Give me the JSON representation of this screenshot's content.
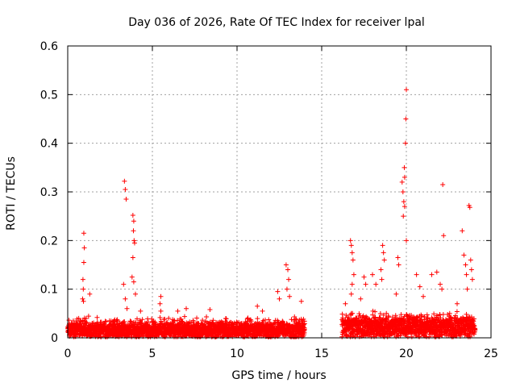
{
  "chart_data": {
    "type": "scatter",
    "title": "Day 036 of 2026, Rate Of TEC Index for receiver lpal",
    "xlabel": "GPS time / hours",
    "ylabel": "ROTI / TECUs",
    "xlim": [
      0,
      25
    ],
    "ylim": [
      0,
      0.6
    ],
    "xticks": [
      0,
      5,
      10,
      15,
      20,
      25
    ],
    "yticks": [
      0,
      0.1,
      0.2,
      0.3,
      0.4,
      0.5,
      0.6
    ],
    "xtick_labels": [
      "0",
      "5",
      "10",
      "15",
      "20",
      "25"
    ],
    "ytick_labels": [
      "0",
      "0.1",
      "0.2",
      "0.3",
      "0.4",
      "0.5",
      "0.6"
    ],
    "grid": true,
    "marker": "+",
    "marker_color": "#ff0000",
    "data_gap_hours": [
      14.0,
      16.2
    ],
    "series": [
      {
        "name": "ROTI",
        "points": [
          [
            0.95,
            0.215
          ],
          [
            0.98,
            0.185
          ],
          [
            0.95,
            0.155
          ],
          [
            0.9,
            0.12
          ],
          [
            0.92,
            0.1
          ],
          [
            0.88,
            0.08
          ],
          [
            0.93,
            0.075
          ],
          [
            1.3,
            0.09
          ],
          [
            3.35,
            0.322
          ],
          [
            3.4,
            0.305
          ],
          [
            3.45,
            0.285
          ],
          [
            3.3,
            0.11
          ],
          [
            3.4,
            0.08
          ],
          [
            3.5,
            0.06
          ],
          [
            3.85,
            0.252
          ],
          [
            3.9,
            0.24
          ],
          [
            3.88,
            0.22
          ],
          [
            3.92,
            0.2
          ],
          [
            3.95,
            0.195
          ],
          [
            3.85,
            0.165
          ],
          [
            3.8,
            0.125
          ],
          [
            3.9,
            0.115
          ],
          [
            4.0,
            0.09
          ],
          [
            4.3,
            0.055
          ],
          [
            5.5,
            0.085
          ],
          [
            5.45,
            0.07
          ],
          [
            5.5,
            0.055
          ],
          [
            6.5,
            0.055
          ],
          [
            7.0,
            0.06
          ],
          [
            8.4,
            0.058
          ],
          [
            11.2,
            0.065
          ],
          [
            11.5,
            0.055
          ],
          [
            12.4,
            0.095
          ],
          [
            12.5,
            0.08
          ],
          [
            12.9,
            0.15
          ],
          [
            13.0,
            0.14
          ],
          [
            13.05,
            0.12
          ],
          [
            12.95,
            0.1
          ],
          [
            13.1,
            0.085
          ],
          [
            13.8,
            0.075
          ],
          [
            16.4,
            0.07
          ],
          [
            16.7,
            0.2
          ],
          [
            16.75,
            0.19
          ],
          [
            16.8,
            0.175
          ],
          [
            16.85,
            0.16
          ],
          [
            16.9,
            0.13
          ],
          [
            16.8,
            0.11
          ],
          [
            16.75,
            0.09
          ],
          [
            17.5,
            0.125
          ],
          [
            17.6,
            0.11
          ],
          [
            17.3,
            0.08
          ],
          [
            18.0,
            0.13
          ],
          [
            18.2,
            0.11
          ],
          [
            18.6,
            0.19
          ],
          [
            18.65,
            0.175
          ],
          [
            18.7,
            0.16
          ],
          [
            18.5,
            0.14
          ],
          [
            18.55,
            0.12
          ],
          [
            19.5,
            0.165
          ],
          [
            19.55,
            0.15
          ],
          [
            19.4,
            0.09
          ],
          [
            19.75,
            0.32
          ],
          [
            19.8,
            0.3
          ],
          [
            19.85,
            0.28
          ],
          [
            19.9,
            0.27
          ],
          [
            19.82,
            0.25
          ],
          [
            19.88,
            0.35
          ],
          [
            19.9,
            0.33
          ],
          [
            19.95,
            0.4
          ],
          [
            19.97,
            0.45
          ],
          [
            20.0,
            0.51
          ],
          [
            20.0,
            0.2
          ],
          [
            20.6,
            0.13
          ],
          [
            20.8,
            0.105
          ],
          [
            21.0,
            0.085
          ],
          [
            21.5,
            0.13
          ],
          [
            21.8,
            0.135
          ],
          [
            22.0,
            0.11
          ],
          [
            22.1,
            0.1
          ],
          [
            22.15,
            0.315
          ],
          [
            22.2,
            0.21
          ],
          [
            23.0,
            0.07
          ],
          [
            23.3,
            0.22
          ],
          [
            23.4,
            0.17
          ],
          [
            23.5,
            0.15
          ],
          [
            23.55,
            0.13
          ],
          [
            23.6,
            0.1
          ],
          [
            23.7,
            0.272
          ],
          [
            23.75,
            0.268
          ],
          [
            23.8,
            0.16
          ],
          [
            23.85,
            0.14
          ],
          [
            23.9,
            0.12
          ]
        ]
      }
    ]
  }
}
